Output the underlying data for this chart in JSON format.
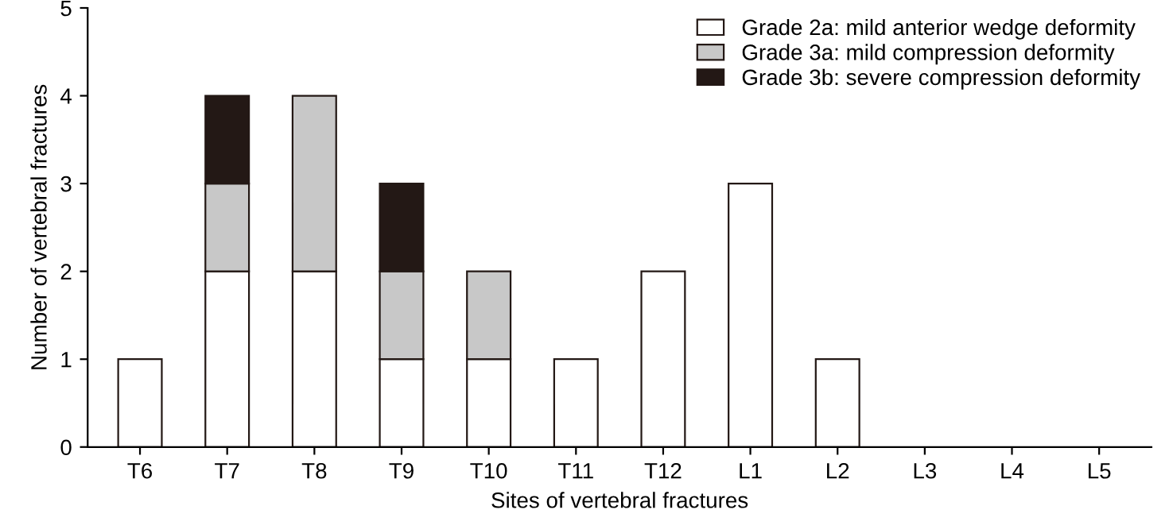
{
  "chart_data": {
    "type": "bar",
    "xlabel": "Sites of vertebral fractures",
    "ylabel": "Number of vertebral fractures",
    "categories": [
      "T6",
      "T7",
      "T8",
      "T9",
      "T10",
      "T11",
      "T12",
      "L1",
      "L2",
      "L3",
      "L4",
      "L5"
    ],
    "stacked": true,
    "ylim": [
      0,
      5
    ],
    "yticks": [
      0,
      1,
      2,
      3,
      4,
      5
    ],
    "grid": false,
    "legend": "top right",
    "series": [
      {
        "name": "Grade 2a: mild anterior wedge deformity",
        "color": "#ffffff",
        "values": [
          1,
          2,
          2,
          1,
          1,
          1,
          2,
          3,
          1,
          null,
          null,
          null
        ]
      },
      {
        "name": "Grade 3a: mild compression deformity",
        "color": "#c8c8c8",
        "values": [
          null,
          1,
          2,
          1,
          1,
          null,
          null,
          null,
          null,
          null,
          null,
          null
        ]
      },
      {
        "name": "Grade 3b: severe compression deformity",
        "color": "#231815",
        "values": [
          null,
          1,
          null,
          1,
          null,
          null,
          null,
          null,
          null,
          null,
          null,
          null
        ]
      }
    ]
  }
}
